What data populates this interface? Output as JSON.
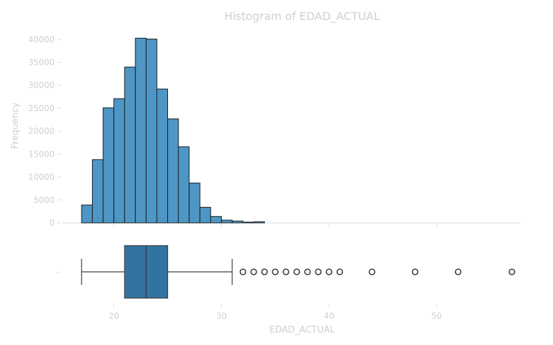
{
  "chart_data": [
    {
      "type": "bar",
      "title": "Histogram of EDAD_ACTUAL",
      "xlabel": "",
      "ylabel": "Frequency",
      "ylim": [
        0,
        42000
      ],
      "yticks": [
        "0",
        "5000",
        "10000",
        "15000",
        "20000",
        "25000",
        "30000",
        "35000",
        "40000"
      ],
      "xticks": [
        "20",
        "30",
        "40",
        "50"
      ],
      "xlim": [
        15.2,
        57.8
      ],
      "bins": [
        {
          "x0": 17.0,
          "x1": 18.0,
          "value": 3900
        },
        {
          "x0": 18.0,
          "x1": 19.0,
          "value": 13800
        },
        {
          "x0": 19.0,
          "x1": 20.0,
          "value": 25100
        },
        {
          "x0": 20.0,
          "x1": 21.0,
          "value": 27100
        },
        {
          "x0": 21.0,
          "x1": 22.0,
          "value": 34000
        },
        {
          "x0": 22.0,
          "x1": 23.0,
          "value": 40300
        },
        {
          "x0": 23.0,
          "x1": 24.0,
          "value": 40100
        },
        {
          "x0": 24.0,
          "x1": 25.0,
          "value": 29200
        },
        {
          "x0": 25.0,
          "x1": 26.0,
          "value": 22700
        },
        {
          "x0": 26.0,
          "x1": 27.0,
          "value": 16600
        },
        {
          "x0": 27.0,
          "x1": 28.0,
          "value": 8700
        },
        {
          "x0": 28.0,
          "x1": 29.0,
          "value": 3400
        },
        {
          "x0": 29.0,
          "x1": 30.0,
          "value": 1400
        },
        {
          "x0": 30.0,
          "x1": 31.0,
          "value": 600
        },
        {
          "x0": 31.0,
          "x1": 32.0,
          "value": 400
        },
        {
          "x0": 32.0,
          "x1": 33.0,
          "value": 150
        },
        {
          "x0": 33.0,
          "x1": 34.0,
          "value": 250
        }
      ],
      "color": "#4e96c6"
    },
    {
      "type": "box",
      "xlabel": "EDAD_ACTUAL",
      "ylabel": "",
      "ytick": "-",
      "xticks": [
        "20",
        "30",
        "40",
        "50"
      ],
      "xlim": [
        15.2,
        57.8
      ],
      "whisker_low": 17,
      "q1": 21,
      "median": 23,
      "q3": 25,
      "whisker_high": 31,
      "outliers": [
        32,
        33,
        34,
        35,
        36,
        37,
        38,
        39,
        40,
        41,
        44,
        48,
        52,
        57
      ],
      "color": "#3274a1"
    }
  ]
}
